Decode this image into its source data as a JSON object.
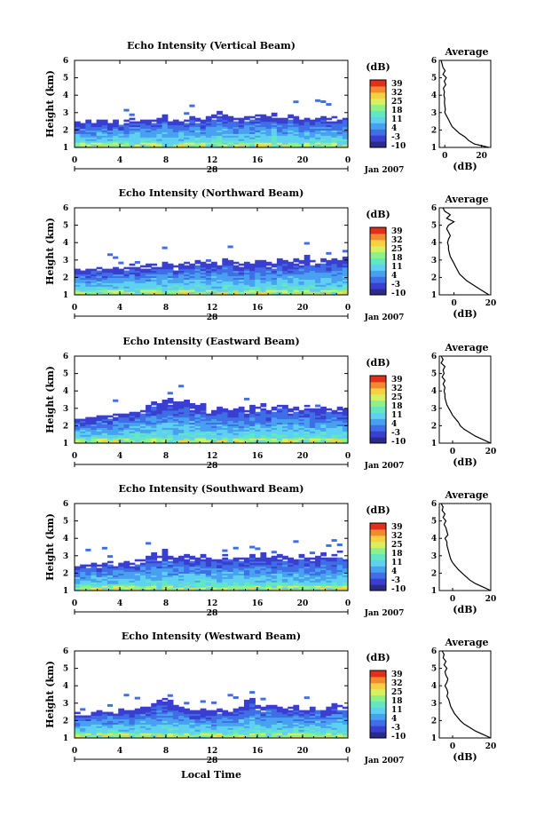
{
  "time_axis_label": "Local Time",
  "colorbar": {
    "unit_label": "(dB)",
    "ticks": [
      "39",
      "32",
      "25",
      "18",
      "11",
      "4",
      "-3",
      "-10"
    ],
    "colors": [
      "#2b2b8c",
      "#3a3fd0",
      "#3f6ee6",
      "#48a0f0",
      "#5fd0f0",
      "#62e6c4",
      "#8ef08a",
      "#d8f060",
      "#f6d040",
      "#f48a30",
      "#e0301c"
    ]
  },
  "chart_data": [
    {
      "type": "heatmap",
      "title": "Echo Intensity (Vertical Beam)",
      "ylabel": "Height (km)",
      "xlabel": "Local Time",
      "x_ticks": [
        "0",
        "4",
        "8",
        "12",
        "16",
        "20",
        "0"
      ],
      "date_label": "28",
      "month_label": "Jan 2007",
      "xlim": [
        0,
        24
      ],
      "ylim": [
        1,
        6
      ],
      "y_ticks": [
        "1",
        "2",
        "3",
        "4",
        "5",
        "6"
      ],
      "clim": [
        -10,
        39
      ],
      "echo_top_km": [
        2.5,
        2.5,
        2.6,
        2.4,
        2.6,
        2.6,
        2.5,
        2.6,
        2.5,
        2.6,
        2.7,
        2.6,
        2.6,
        2.7,
        2.6,
        2.8,
        2.9,
        2.7,
        2.6,
        2.5,
        2.7,
        2.8,
        2.7,
        2.6,
        2.8,
        2.9,
        3.1,
        3.0,
        2.8,
        2.8,
        2.7,
        2.8,
        2.8,
        2.9,
        2.9,
        2.8,
        3.0,
        2.8,
        2.7,
        2.9,
        2.8,
        2.7,
        2.7,
        2.6,
        2.8,
        2.9,
        2.7,
        2.8,
        2.7,
        2.8
      ],
      "average_profile": {
        "title": "Average",
        "xlabel": "(dB)",
        "x_ticks": [
          "0",
          "20"
        ],
        "xlim": [
          -3,
          25
        ],
        "height_km": [
          1.0,
          1.2,
          1.4,
          1.6,
          1.8,
          2.0,
          2.2,
          2.4,
          2.6,
          2.8,
          3.0,
          3.2,
          3.4,
          3.6,
          3.8,
          4.0,
          4.2,
          4.4,
          4.6,
          4.8,
          5.0,
          5.2,
          5.4,
          5.6,
          5.8,
          6.0
        ],
        "intensity_db": [
          24,
          16,
          13,
          11,
          8,
          6,
          4,
          3,
          2,
          1,
          0,
          0.3,
          0,
          -0.2,
          0,
          -0.5,
          -0.2,
          -0.8,
          0.5,
          -0.3,
          0.8,
          -1,
          0.2,
          -1,
          -1.5,
          -2
        ]
      }
    },
    {
      "type": "heatmap",
      "title": "Echo Intensity (Northward Beam)",
      "ylabel": "Height (km)",
      "xlabel": "Local Time",
      "x_ticks": [
        "0",
        "4",
        "8",
        "12",
        "16",
        "20",
        "0"
      ],
      "date_label": "28",
      "month_label": "Jan 2007",
      "xlim": [
        0,
        24
      ],
      "ylim": [
        1,
        6
      ],
      "y_ticks": [
        "1",
        "2",
        "3",
        "4",
        "5",
        "6"
      ],
      "clim": [
        -10,
        39
      ],
      "echo_top_km": [
        2.5,
        2.4,
        2.5,
        2.6,
        2.6,
        2.5,
        2.7,
        2.6,
        2.5,
        2.6,
        2.8,
        2.6,
        2.7,
        2.8,
        2.8,
        2.7,
        2.9,
        2.8,
        2.7,
        2.8,
        2.9,
        2.8,
        3.0,
        2.9,
        2.8,
        2.9,
        2.8,
        3.2,
        3.0,
        2.9,
        2.8,
        2.9,
        2.8,
        3.0,
        3.0,
        2.9,
        2.8,
        3.1,
        3.0,
        2.9,
        3.1,
        3.0,
        3.3,
        3.0,
        2.9,
        3.1,
        3.0,
        3.2,
        3.0,
        3.2
      ],
      "average_profile": {
        "title": "Average",
        "xlabel": "(dB)",
        "x_ticks": [
          "0",
          "20"
        ],
        "xlim": [
          -8,
          20
        ],
        "height_km": [
          1.0,
          1.2,
          1.4,
          1.6,
          1.8,
          2.0,
          2.2,
          2.4,
          2.6,
          2.8,
          3.0,
          3.2,
          3.4,
          3.6,
          3.8,
          4.0,
          4.2,
          4.4,
          4.6,
          4.8,
          5.0,
          5.2,
          5.4,
          5.6,
          5.8,
          6.0
        ],
        "intensity_db": [
          19,
          16,
          13,
          10,
          7,
          5,
          3,
          2,
          1,
          0,
          -1,
          -2,
          -2.5,
          -3,
          -3,
          -3.5,
          -3,
          -2,
          -3,
          -4,
          -3,
          0,
          -4,
          -2,
          -5,
          -6
        ]
      }
    },
    {
      "type": "heatmap",
      "title": "Echo Intensity (Eastward Beam)",
      "ylabel": "Height (km)",
      "xlabel": "Local Time",
      "x_ticks": [
        "0",
        "4",
        "8",
        "12",
        "16",
        "20",
        "0"
      ],
      "date_label": "28",
      "month_label": "Jan 2007",
      "xlim": [
        0,
        24
      ],
      "ylim": [
        1,
        6
      ],
      "y_ticks": [
        "1",
        "2",
        "3",
        "4",
        "5",
        "6"
      ],
      "clim": [
        -10,
        39
      ],
      "echo_top_km": [
        2.4,
        2.4,
        2.5,
        2.5,
        2.6,
        2.6,
        2.6,
        2.7,
        2.7,
        2.8,
        2.8,
        2.9,
        3.0,
        3.2,
        3.4,
        3.3,
        3.5,
        3.6,
        3.4,
        3.4,
        3.5,
        3.3,
        3.2,
        3.3,
        3.0,
        2.9,
        3.1,
        3.0,
        2.9,
        3.0,
        3.1,
        3.0,
        3.2,
        3.1,
        3.3,
        3.0,
        3.1,
        3.2,
        3.4,
        3.0,
        3.1,
        3.0,
        3.2,
        3.0,
        3.0,
        3.1,
        3.0,
        3.2,
        3.1,
        3.0
      ],
      "average_profile": {
        "title": "Average",
        "xlabel": "(dB)",
        "x_ticks": [
          "0",
          "20"
        ],
        "xlim": [
          -7,
          20
        ],
        "height_km": [
          1.0,
          1.2,
          1.4,
          1.6,
          1.8,
          2.0,
          2.2,
          2.4,
          2.6,
          2.8,
          3.0,
          3.2,
          3.4,
          3.6,
          3.8,
          4.0,
          4.2,
          4.4,
          4.6,
          4.8,
          5.0,
          5.2,
          5.4,
          5.6,
          5.8,
          6.0
        ],
        "intensity_db": [
          20,
          16,
          12,
          9,
          6,
          4,
          3,
          1.5,
          0,
          -1,
          -2,
          -3,
          -3.5,
          -4,
          -4,
          -4.5,
          -4,
          -5,
          -4,
          -5.5,
          -4.5,
          -5,
          -4,
          -6,
          -5,
          -6
        ]
      }
    },
    {
      "type": "heatmap",
      "title": "Echo Intensity (Southward Beam)",
      "ylabel": "Height (km)",
      "xlabel": "Local Time",
      "x_ticks": [
        "0",
        "4",
        "8",
        "12",
        "16",
        "20",
        "0"
      ],
      "date_label": "28",
      "month_label": "Jan 2007",
      "xlim": [
        0,
        24
      ],
      "ylim": [
        1,
        6
      ],
      "y_ticks": [
        "1",
        "2",
        "3",
        "4",
        "5",
        "6"
      ],
      "clim": [
        -10,
        39
      ],
      "echo_top_km": [
        2.4,
        2.5,
        2.5,
        2.6,
        2.5,
        2.6,
        2.7,
        2.6,
        2.6,
        2.7,
        2.7,
        2.8,
        2.8,
        3.0,
        3.2,
        3.0,
        3.4,
        3.0,
        2.9,
        3.0,
        3.1,
        3.0,
        2.9,
        3.1,
        2.9,
        3.0,
        2.9,
        3.1,
        3.0,
        2.9,
        3.0,
        2.9,
        3.1,
        3.0,
        3.2,
        2.9,
        3.0,
        3.1,
        3.0,
        2.9,
        3.0,
        3.1,
        3.0,
        2.9,
        3.0,
        3.2,
        3.0,
        3.1,
        3.3,
        3.0
      ],
      "average_profile": {
        "title": "Average",
        "xlabel": "(dB)",
        "x_ticks": [
          "0",
          "20"
        ],
        "xlim": [
          -7,
          20
        ],
        "height_km": [
          1.0,
          1.2,
          1.4,
          1.6,
          1.8,
          2.0,
          2.2,
          2.4,
          2.6,
          2.8,
          3.0,
          3.2,
          3.4,
          3.6,
          3.8,
          4.0,
          4.2,
          4.4,
          4.6,
          4.8,
          5.0,
          5.2,
          5.4,
          5.6,
          5.8,
          6.0
        ],
        "intensity_db": [
          20,
          16,
          12,
          9,
          7,
          5,
          3,
          1.5,
          0,
          -1,
          -1.5,
          -2,
          -2.5,
          -3,
          -3,
          -4,
          -2.5,
          -3,
          -3.5,
          -4.5,
          -3.5,
          -5,
          -4,
          -5.5,
          -5,
          -6
        ]
      }
    },
    {
      "type": "heatmap",
      "title": "Echo Intensity (Westward Beam)",
      "ylabel": "Height (km)",
      "xlabel": "Local Time",
      "x_ticks": [
        "0",
        "4",
        "8",
        "12",
        "16",
        "20",
        "0"
      ],
      "date_label": "28",
      "month_label": "Jan 2007",
      "xlim": [
        0,
        24
      ],
      "ylim": [
        1,
        6
      ],
      "y_ticks": [
        "1",
        "2",
        "3",
        "4",
        "5",
        "6"
      ],
      "clim": [
        -10,
        39
      ],
      "echo_top_km": [
        2.5,
        2.5,
        2.4,
        2.5,
        2.6,
        2.6,
        2.6,
        2.5,
        2.7,
        2.6,
        2.6,
        2.7,
        2.8,
        2.8,
        3.0,
        3.2,
        3.3,
        3.2,
        2.9,
        2.8,
        2.7,
        2.6,
        2.6,
        2.7,
        2.6,
        2.6,
        2.7,
        2.6,
        2.6,
        2.7,
        3.0,
        3.2,
        3.3,
        2.9,
        2.8,
        3.0,
        2.9,
        2.8,
        2.7,
        2.8,
        2.9,
        2.8,
        2.7,
        2.8,
        2.9,
        2.7,
        2.8,
        3.0,
        2.9,
        2.8
      ],
      "average_profile": {
        "title": "Average",
        "xlabel": "(dB)",
        "x_ticks": [
          "0",
          "20"
        ],
        "xlim": [
          -7,
          20
        ],
        "height_km": [
          1.0,
          1.2,
          1.4,
          1.6,
          1.8,
          2.0,
          2.2,
          2.4,
          2.6,
          2.8,
          3.0,
          3.2,
          3.4,
          3.6,
          3.8,
          4.0,
          4.2,
          4.4,
          4.6,
          4.8,
          5.0,
          5.2,
          5.4,
          5.6,
          5.8,
          6.0
        ],
        "intensity_db": [
          20,
          16,
          12,
          9,
          6,
          4,
          2.5,
          1,
          0,
          -1,
          -1.5,
          -2,
          -3,
          -2.5,
          -3,
          -4,
          -3,
          -2.5,
          -3.5,
          -4,
          -3,
          -4.5,
          -3.5,
          -5,
          -4.5,
          -5.5
        ]
      }
    }
  ]
}
